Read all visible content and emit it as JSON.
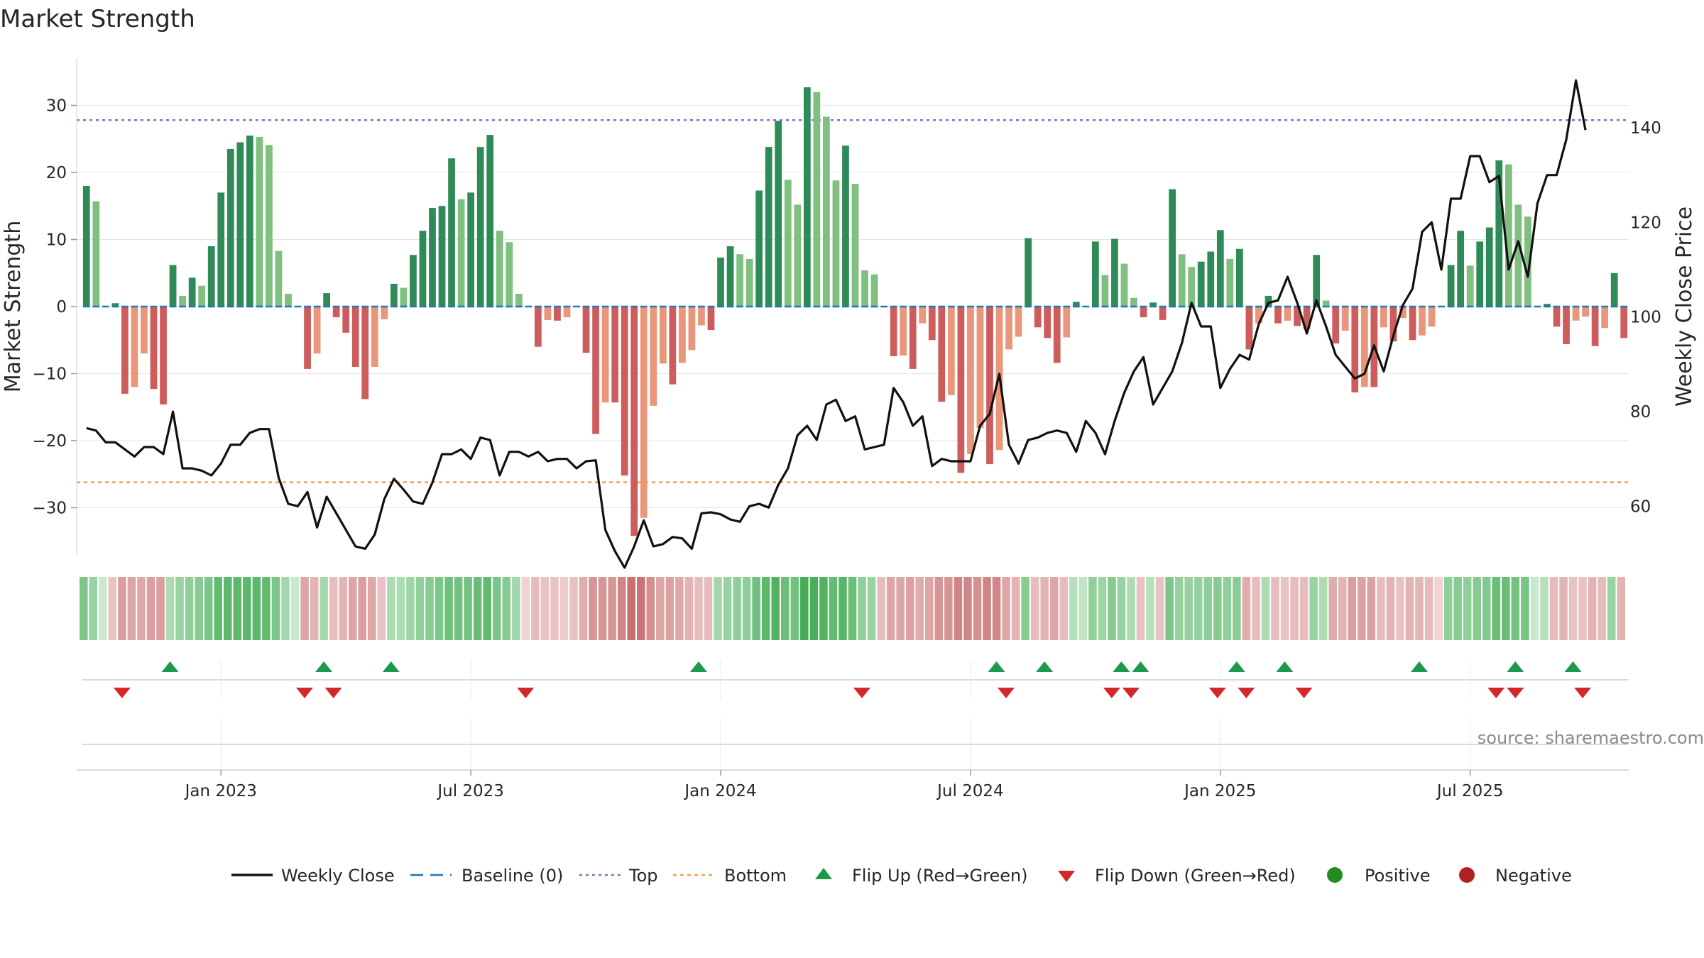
{
  "chart_data": {
    "type": "bar",
    "title": "Market Strength",
    "ylabel": "Market Strength",
    "y2label": "Weekly Close Price",
    "ylim": [
      -37,
      37
    ],
    "y2lim": [
      50,
      155
    ],
    "yticks": [
      30,
      20,
      10,
      0,
      -10,
      -20,
      -30
    ],
    "ytick_labels": [
      "30",
      "20",
      "10",
      "0",
      "−10",
      "−20",
      "−30"
    ],
    "y2ticks": [
      140,
      120,
      100,
      80,
      60
    ],
    "y2tick_labels": [
      "140",
      "120",
      "100",
      "80",
      "60"
    ],
    "xtick_labels": [
      "Jan 2023",
      "Jul 2023",
      "Jan 2024",
      "Jul 2024",
      "Jan 2025",
      "Jul 2025"
    ],
    "xtick_weeks": [
      14.5,
      40.5,
      66.5,
      92.5,
      118.5,
      144.5
    ],
    "top_level": 27.8,
    "bottom_level": -26.2,
    "strength": [
      18,
      15.7,
      0,
      0.5,
      -13,
      -12,
      -7,
      -12.3,
      -14.6,
      6.2,
      1.6,
      4.3,
      3.1,
      9,
      17,
      23.5,
      24.5,
      25.5,
      25.3,
      24.1,
      8.3,
      1.9,
      0,
      -9.3,
      -7,
      2,
      -1.6,
      -3.9,
      -9,
      -13.8,
      -9,
      -1.9,
      3.4,
      2.8,
      7.7,
      11.3,
      14.7,
      15,
      22.1,
      16,
      17,
      23.8,
      25.6,
      11.3,
      9.6,
      1.9,
      0,
      -6,
      -2,
      -2.1,
      -1.6,
      0,
      -6.9,
      -19,
      -14.3,
      -14.3,
      -25.2,
      -34.2,
      -31.5,
      -14.8,
      -8.5,
      -11.6,
      -8.4,
      -6.5,
      -2.8,
      -3.5,
      7.3,
      9,
      7.8,
      7.1,
      17.3,
      23.8,
      27.7,
      18.9,
      15.2,
      32.7,
      32,
      28.3,
      18.8,
      24,
      18.3,
      5.4,
      4.8,
      0,
      -7.4,
      -7.3,
      -9.3,
      -2.5,
      -5,
      -14.2,
      -13.2,
      -24.8,
      -22,
      -18.1,
      -23.5,
      -21.4,
      -6.4,
      -4.5,
      10.2,
      -3.1,
      -4.7,
      -8.4,
      -4.6,
      0.7,
      0,
      9.7,
      4.7,
      10.1,
      6.4,
      1.3,
      -1.6,
      0.6,
      -2,
      17.5,
      7.8,
      5.9,
      6.7,
      8.2,
      11.4,
      7.1,
      8.6,
      -6.4,
      -2.5,
      1.6,
      -2.5,
      -2.1,
      -2.9,
      -3.3,
      7.7,
      0.9,
      -5.5,
      -3.6,
      -12.8,
      -12,
      -12,
      -3.1,
      -5.2,
      -1.7,
      -5,
      -4.3,
      -3,
      0,
      6.2,
      11.3,
      6.1,
      9.7,
      11.8,
      21.8,
      21.2,
      15.2,
      13.4,
      0,
      0.4,
      -3,
      -5.6,
      -2.1,
      -1.5,
      -5.9,
      -3.2,
      5,
      -4.7
    ],
    "weekly_close": [
      76.5,
      76,
      73.5,
      73.5,
      72,
      70.5,
      72.5,
      72.5,
      71,
      80,
      68,
      68,
      67.5,
      66.5,
      69,
      73,
      73,
      75.5,
      76.3,
      76.3,
      66,
      60.5,
      60,
      63,
      55.5,
      62,
      58.5,
      55,
      51.5,
      51,
      54,
      61.5,
      65.8,
      63.5,
      61,
      60.5,
      65,
      71,
      71,
      72,
      70,
      74.5,
      74,
      66.5,
      71.5,
      71.5,
      70.5,
      71.5,
      69.5,
      70,
      70,
      68,
      69.5,
      69.7,
      55,
      50.5,
      47,
      51.5,
      57,
      51.5,
      52,
      53.5,
      53.2,
      51,
      58.5,
      58.7,
      58.3,
      57.2,
      56.7,
      60,
      60.5,
      59.7,
      64.5,
      68,
      75,
      77,
      74,
      81.5,
      82.5,
      78,
      79,
      72,
      72.5,
      73,
      85,
      82,
      77,
      79,
      68.5,
      70,
      69.5,
      69.5,
      69.5,
      77,
      79.5,
      88,
      73,
      69,
      74,
      74.5,
      75.5,
      76,
      75.5,
      71.5,
      78,
      75.5,
      71,
      78,
      84,
      88.5,
      91.5,
      81.5,
      85,
      88.5,
      94.5,
      103,
      98,
      98,
      85,
      89,
      92,
      91,
      98.5,
      103,
      103.5,
      108.5,
      103,
      96.5,
      103.5,
      98,
      92,
      89.5,
      87,
      88,
      94,
      88.5,
      96,
      102.5,
      106,
      118,
      120,
      110,
      125,
      125,
      134,
      134,
      128.5,
      129.8,
      110,
      116,
      108.5,
      124,
      130,
      130,
      137.5,
      150,
      139.5
    ],
    "heat_scores": [
      0.55,
      0.4,
      0.15,
      -0.2,
      -0.45,
      -0.4,
      -0.38,
      -0.45,
      -0.45,
      0.3,
      0.4,
      0.45,
      0.5,
      0.55,
      0.68,
      0.72,
      0.72,
      0.72,
      0.72,
      0.7,
      0.55,
      0.35,
      0.15,
      -0.4,
      -0.3,
      0.35,
      -0.25,
      -0.3,
      -0.4,
      -0.45,
      -0.38,
      -0.2,
      0.3,
      0.3,
      0.38,
      0.45,
      0.5,
      0.55,
      0.62,
      0.6,
      0.6,
      0.66,
      0.7,
      0.55,
      0.5,
      0.35,
      -0.1,
      -0.25,
      -0.2,
      -0.2,
      -0.15,
      -0.2,
      -0.35,
      -0.5,
      -0.5,
      -0.5,
      -0.62,
      -0.75,
      -0.72,
      -0.55,
      -0.4,
      -0.42,
      -0.38,
      -0.3,
      -0.25,
      -0.25,
      0.35,
      0.4,
      0.45,
      0.45,
      0.62,
      0.72,
      0.78,
      0.65,
      0.6,
      0.85,
      0.82,
      0.78,
      0.68,
      0.75,
      0.65,
      0.45,
      0.4,
      -0.25,
      -0.4,
      -0.4,
      -0.42,
      -0.35,
      -0.4,
      -0.5,
      -0.5,
      -0.62,
      -0.6,
      -0.55,
      -0.62,
      -0.6,
      -0.38,
      -0.3,
      0.5,
      -0.25,
      -0.3,
      -0.4,
      -0.25,
      0.25,
      0.2,
      0.45,
      0.38,
      0.5,
      0.4,
      0.3,
      -0.2,
      0.25,
      -0.2,
      0.55,
      0.42,
      0.42,
      0.42,
      0.45,
      0.5,
      0.45,
      0.48,
      -0.35,
      -0.25,
      0.3,
      -0.25,
      -0.2,
      -0.25,
      -0.25,
      0.4,
      0.3,
      -0.35,
      -0.3,
      -0.45,
      -0.42,
      -0.42,
      -0.25,
      -0.3,
      -0.2,
      -0.3,
      -0.28,
      -0.25,
      -0.1,
      0.45,
      0.5,
      0.45,
      0.5,
      0.52,
      0.65,
      0.65,
      0.6,
      0.58,
      0.15,
      0.25,
      -0.25,
      -0.3,
      -0.2,
      -0.2,
      -0.3,
      -0.25,
      0.4,
      -0.3
    ],
    "flip_up_weeks": [
      9.2,
      25.2,
      32.2,
      64.2,
      95.2,
      100.2,
      108.2,
      110.2,
      120.2,
      125.2,
      139.2,
      149.2,
      155.2
    ],
    "flip_down_weeks": [
      4.2,
      23.2,
      26.2,
      46.2,
      81.2,
      96.2,
      107.2,
      109.2,
      118.2,
      121.2,
      127.2,
      147.2,
      149.2,
      156.2
    ],
    "legend": [
      {
        "key": "weekly_close",
        "label": "Weekly Close"
      },
      {
        "key": "baseline",
        "label": "Baseline (0)"
      },
      {
        "key": "top",
        "label": "Top"
      },
      {
        "key": "bottom",
        "label": "Bottom"
      },
      {
        "key": "flip_up",
        "label": "Flip Up (Red→Green)"
      },
      {
        "key": "flip_down",
        "label": "Flip Down (Green→Red)"
      },
      {
        "key": "positive",
        "label": "Positive"
      },
      {
        "key": "negative",
        "label": "Negative"
      }
    ],
    "source": "source: sharemaestro.com"
  },
  "colors": {
    "pos_dark": "#2e8b57",
    "pos_light": "#7fbf7f",
    "neg_dark": "#cd5c5c",
    "neg_light": "#e9967a",
    "line": "#111111",
    "baseline": "#1f77b4",
    "top": "#9467bd",
    "bottom": "#f0a050",
    "flip_up": "#1a9a4a",
    "flip_down": "#d62728",
    "positive_dot": "#228b22",
    "negative_dot": "#b22222",
    "grid": "#e6e6e6"
  }
}
